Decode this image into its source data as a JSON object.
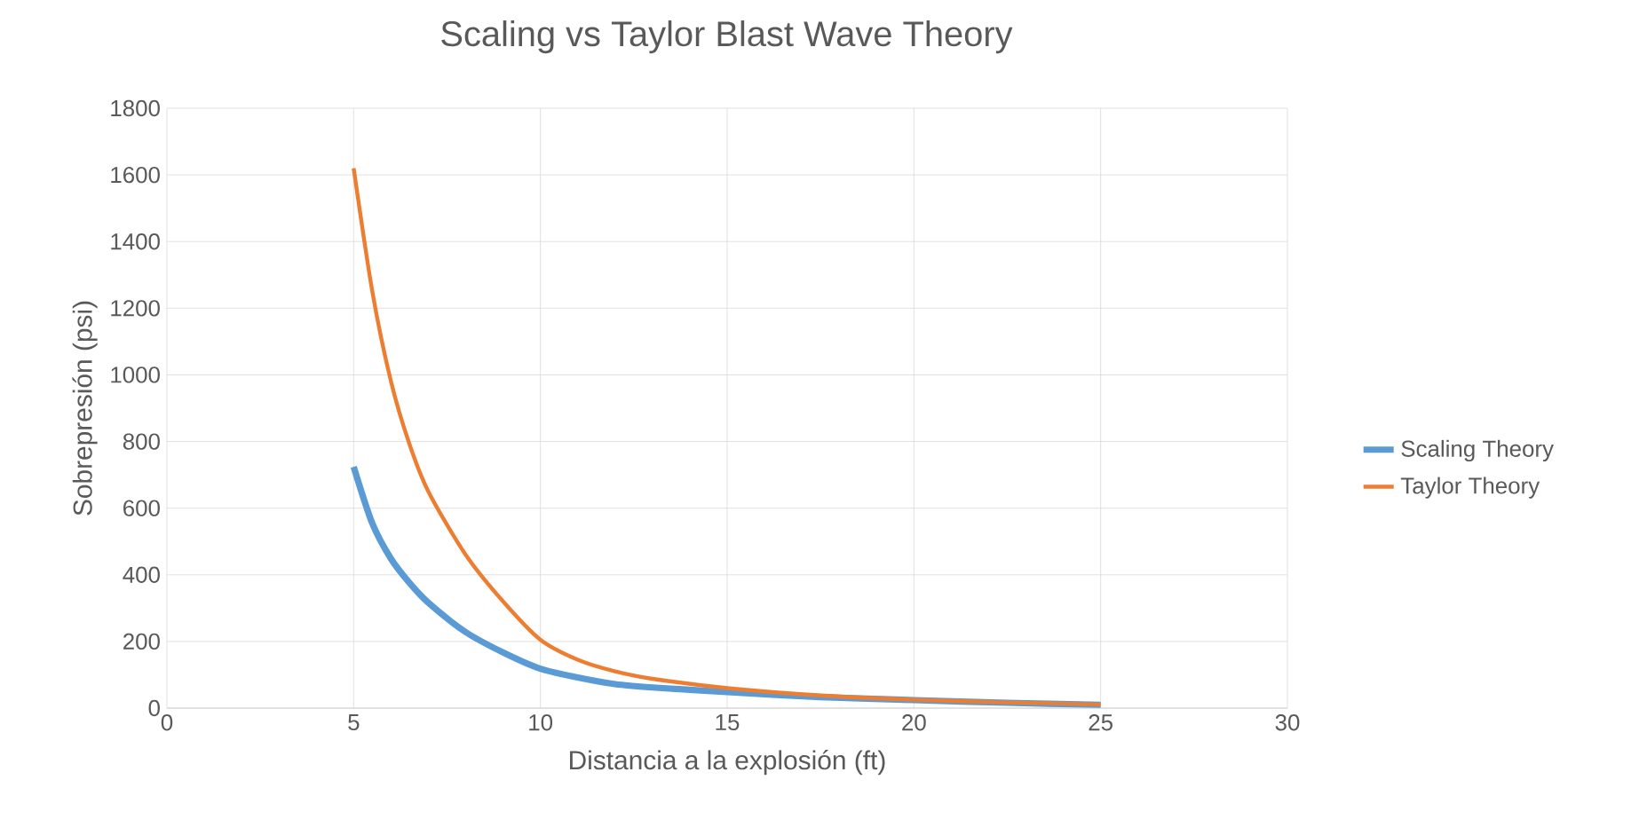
{
  "chart_data": {
    "type": "line",
    "title": "Scaling vs Taylor Blast Wave Theory",
    "xlabel": "Distancia a la explosión (ft)",
    "ylabel": "Sobrepresión (psi)",
    "x": [
      5,
      5.5,
      6,
      6.5,
      7,
      8,
      9,
      10,
      11,
      12,
      13,
      15,
      17.5,
      20,
      22.5,
      25
    ],
    "series": [
      {
        "name": "Scaling Theory",
        "color": "#5b9bd5",
        "values": [
          724,
          554,
          448,
          375,
          316,
          228,
          167,
          118,
          92,
          72,
          62,
          48,
          33,
          24,
          16,
          10
        ]
      },
      {
        "name": "Taylor Theory",
        "color": "#ed7d31",
        "values": [
          1620,
          1250,
          980,
          790,
          650,
          460,
          320,
          205,
          145,
          110,
          88,
          60,
          38,
          25,
          17,
          11
        ]
      }
    ],
    "xlim": [
      0,
      30
    ],
    "xticks": [
      0,
      5,
      10,
      15,
      20,
      25,
      30
    ],
    "ylim": [
      0,
      1800
    ],
    "yticks": [
      0,
      200,
      400,
      600,
      800,
      1000,
      1200,
      1400,
      1600,
      1800
    ],
    "grid": true,
    "legend": "right",
    "marker": "none",
    "line_style": "solid"
  }
}
